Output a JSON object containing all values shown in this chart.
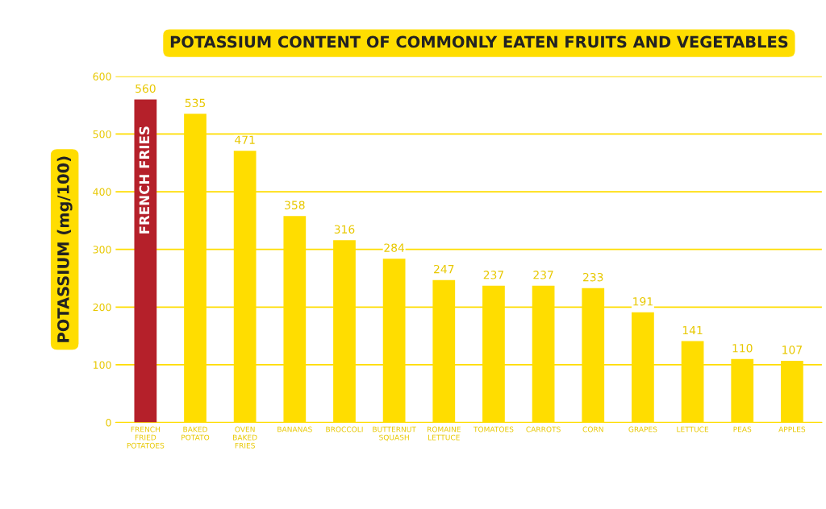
{
  "chart_data": {
    "type": "bar",
    "title": "POTASSIUM CONTENT OF COMMONLY EATEN FRUITS AND VEGETABLES",
    "ylabel": "POTASSIUM (mg/100)",
    "categories": [
      "FRENCH\nFRIED\nPOTATOES",
      "BAKED\nPOTATO",
      "OVEN\nBAKED\nFRIES",
      "BANANAS",
      "BROCCOLI",
      "BUTTERNUT\nSQUASH",
      "ROMAINE\nLETTUCE",
      "TOMATOES",
      "CARROTS",
      "CORN",
      "GRAPES",
      "LETTUCE",
      "PEAS",
      "APPLES"
    ],
    "values": [
      560,
      535,
      471,
      358,
      316,
      284,
      247,
      237,
      237,
      233,
      191,
      141,
      110,
      107
    ],
    "colors": [
      "#b5202a",
      "#ffdd00",
      "#ffdd00",
      "#ffdd00",
      "#ffdd00",
      "#ffdd00",
      "#ffdd00",
      "#ffdd00",
      "#ffdd00",
      "#ffdd00",
      "#ffdd00",
      "#ffdd00",
      "#ffdd00",
      "#ffdd00"
    ],
    "data_labels": true,
    "annotations": [
      "FRENCH FRIES"
    ],
    "ylim": [
      0,
      600
    ],
    "yticks": [
      0,
      100,
      200,
      300,
      400,
      500,
      600
    ],
    "grid": "y"
  }
}
